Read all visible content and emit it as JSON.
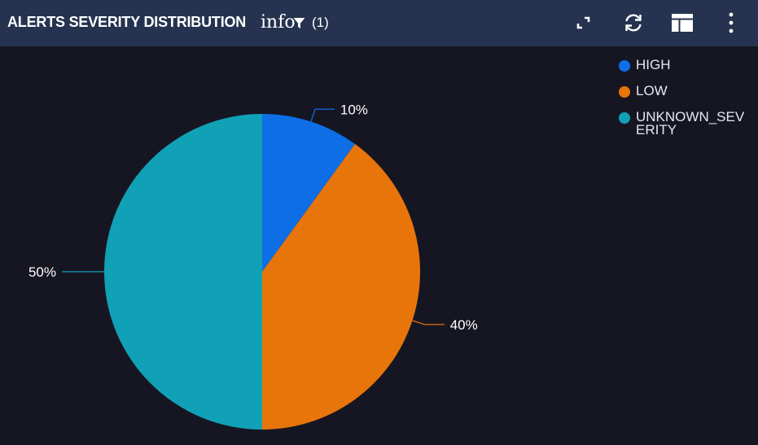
{
  "header": {
    "title": "ALERTS SEVERITY DISTRIBUTION",
    "info_text": "info",
    "filter_count": "(1)",
    "icons": [
      "expand-icon",
      "refresh-icon",
      "layout-icon",
      "more-vertical-icon"
    ]
  },
  "chart_data": {
    "type": "pie",
    "categories": [
      "HIGH",
      "LOW",
      "UNKNOWN_SEVERITY"
    ],
    "values": [
      10,
      40,
      50
    ],
    "labels": [
      "10%",
      "40%",
      "50%"
    ],
    "colors": [
      "#0d6ee6",
      "#e8750a",
      "#11a1b6"
    ],
    "legend_position": "top-right",
    "start_angle": "12 o'clock",
    "direction": "clockwise"
  }
}
